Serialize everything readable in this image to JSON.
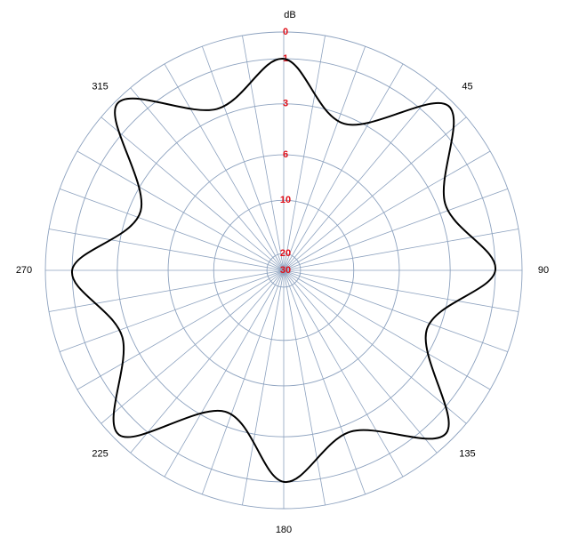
{
  "chart_data": {
    "type": "polar",
    "title": "dB",
    "radial_scale": "amplitude",
    "x": [
      0,
      22.5,
      45,
      67.5,
      90,
      112.5,
      135,
      157.5,
      180,
      202.5,
      225,
      247.5,
      270,
      292.5,
      315,
      337.5
    ],
    "values": [
      1.0,
      3.4,
      0.2,
      2.6,
      1.0,
      3.6,
      0.3,
      2.6,
      1.0,
      3.7,
      0.2,
      2.6,
      1.0,
      3.6,
      0.1,
      2.6
    ],
    "color": "#000000",
    "grid_color": "#8da2bf",
    "tick_color": "#e0101a",
    "ylim": [
      30,
      0
    ],
    "yticks": [
      0,
      1,
      3,
      6,
      10,
      20,
      30
    ],
    "xlim": [
      0,
      360
    ],
    "xticks": [
      45,
      90,
      135,
      180,
      225,
      270,
      315
    ],
    "grid": true
  }
}
